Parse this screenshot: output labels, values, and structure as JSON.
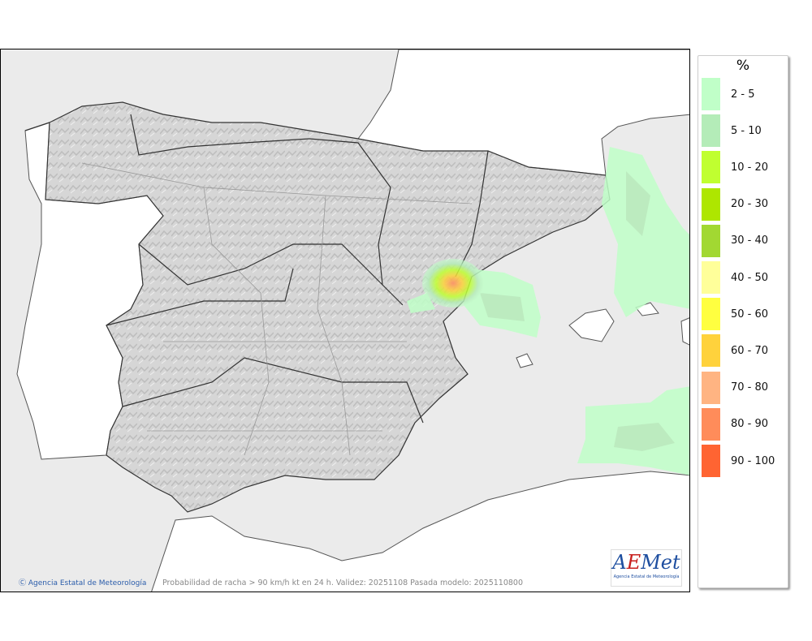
{
  "map": {
    "caption": "Probabilidad de racha > 90 km/h kt en 24 h. Validez: 20251108 Pasada modelo: 2025110800",
    "credit": "Agencia Estatal de Meteorología",
    "credit_icon": "copyright-icon",
    "logo_text": "AEMet",
    "logo_subtext": "Agencia Estatal de Meteorología"
  },
  "legend": {
    "unit": "%",
    "items": [
      {
        "label": "2 - 5",
        "color": "#c0ffc8"
      },
      {
        "label": "5 - 10",
        "color": "#b4ecb8"
      },
      {
        "label": "10 - 20",
        "color": "#c0ff30"
      },
      {
        "label": "20 - 30",
        "color": "#aee600"
      },
      {
        "label": "30 - 40",
        "color": "#a2d832"
      },
      {
        "label": "40 - 50",
        "color": "#ffff9a"
      },
      {
        "label": "50 - 60",
        "color": "#ffff40"
      },
      {
        "label": "60 - 70",
        "color": "#ffd23c"
      },
      {
        "label": "70 - 80",
        "color": "#ffb482"
      },
      {
        "label": "80 - 90",
        "color": "#ff8c5a"
      },
      {
        "label": "90 - 100",
        "color": "#ff6432"
      }
    ]
  }
}
